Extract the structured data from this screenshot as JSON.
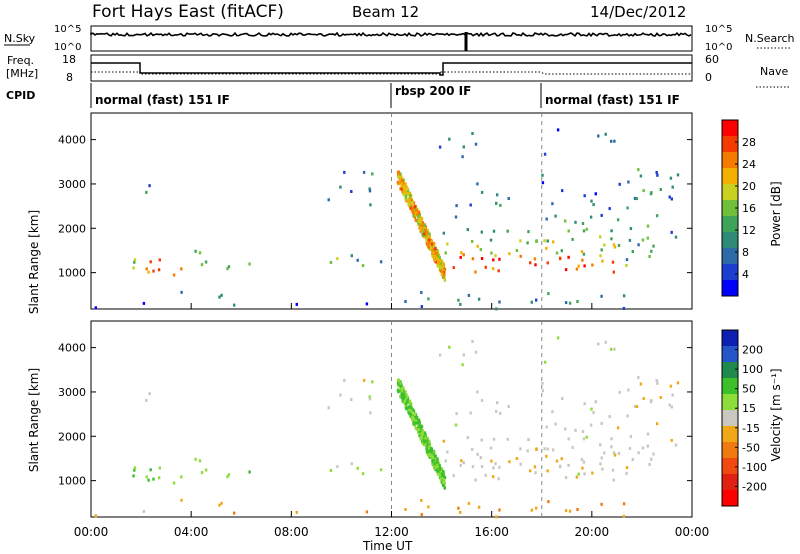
{
  "header": {
    "title": "Fort Hays East (fitACF)",
    "beam": "Beam 12",
    "date": "14/Dec/2012"
  },
  "top_panels": {
    "noise": {
      "left_label": "N.Sky",
      "left_ticks": [
        "10^5",
        "10^0"
      ],
      "right_ticks": [
        "10^5",
        "10^0"
      ],
      "right_label": "N.Search"
    },
    "freq": {
      "left_label_lines": [
        "Freq.",
        "[MHz]"
      ],
      "left_ticks": [
        "18",
        "8"
      ],
      "right_ticks": [
        "60",
        "0"
      ],
      "right_label": "Nave"
    },
    "cpid": {
      "label": "CPID",
      "segments": [
        {
          "start_h": 0,
          "end_h": 12,
          "text": "normal (fast) 151 IF"
        },
        {
          "start_h": 12,
          "end_h": 18,
          "text": "rbsp 200 IF"
        },
        {
          "start_h": 18,
          "end_h": 24,
          "text": "normal (fast) 151 IF"
        }
      ]
    }
  },
  "colors": {
    "power": [
      "#0000ff",
      "#1d3dd0",
      "#2c6aa8",
      "#2f8a78",
      "#3fa35a",
      "#6fbf3a",
      "#c8d020",
      "#f4b000",
      "#f47a00",
      "#f43c00",
      "#ff0000"
    ],
    "velocity": [
      "#0d1fb0",
      "#2456c8",
      "#1f8a4c",
      "#3bbf2a",
      "#8ddc3a",
      "#c8c8c0",
      "#f0a818",
      "#f07a10",
      "#f04a10",
      "#e02010",
      "#ff0000"
    ]
  },
  "chart_data": {
    "type": "heatmap",
    "x_axis": {
      "range_hours": [
        0,
        24
      ],
      "tick_labels": [
        "00:00",
        "04:00",
        "08:00",
        "12:00",
        "16:00",
        "20:00",
        "00:00"
      ],
      "label": "Time UT"
    },
    "y_axis": {
      "label": "Slant Range [km]",
      "range_km": [
        180,
        4600
      ],
      "tick_values": [
        1000,
        2000,
        3000,
        4000
      ]
    },
    "panels": [
      {
        "name": "power",
        "colorbar_label": "Power [dB]",
        "colorbar_ticks": [
          "28",
          "24",
          "20",
          "16",
          "12",
          "8",
          "4"
        ],
        "range": [
          0,
          30
        ]
      },
      {
        "name": "velocity",
        "colorbar_label": "Velocity [m s⁻¹]",
        "colorbar_ticks": [
          "200",
          "100",
          "50",
          "15",
          "-15",
          "-50",
          "-100",
          "-200"
        ],
        "range": [
          -250,
          250
        ]
      }
    ],
    "scatter_regions": [
      {
        "t0": 1.0,
        "t1": 2.0,
        "r0": 1000,
        "r1": 1350,
        "density": 0.8,
        "power": 16,
        "velocity": 60
      },
      {
        "t0": 2.0,
        "t1": 3.6,
        "r0": 850,
        "r1": 1350,
        "density": 0.9,
        "power": 22,
        "velocity": 70
      },
      {
        "t0": 3.5,
        "t1": 5.0,
        "r0": 1150,
        "r1": 1500,
        "density": 0.75,
        "power": 14,
        "velocity": 60
      },
      {
        "t0": 5.0,
        "t1": 6.6,
        "r0": 1050,
        "r1": 1350,
        "density": 0.6,
        "power": 14,
        "velocity": 55
      },
      {
        "t0": 1.8,
        "t1": 2.6,
        "r0": 2400,
        "r1": 3200,
        "density": 0.35,
        "power": 10,
        "velocity": 0
      },
      {
        "t0": 9.0,
        "t1": 11.8,
        "r0": 1000,
        "r1": 1400,
        "density": 0.5,
        "power": 12,
        "velocity": 20
      },
      {
        "t0": 9.2,
        "t1": 12.0,
        "r0": 2400,
        "r1": 3400,
        "density": 0.3,
        "power": 8,
        "velocity": 0
      },
      {
        "t0": 12.0,
        "t1": 24.0,
        "r0": 180,
        "r1": 600,
        "density": 0.35,
        "power": 8,
        "velocity": -60
      },
      {
        "t0": 14.0,
        "t1": 21.0,
        "r0": 1000,
        "r1": 1350,
        "density": 0.95,
        "power": 26,
        "velocity": -5
      },
      {
        "t0": 14.0,
        "t1": 21.0,
        "r0": 1350,
        "r1": 1700,
        "density": 0.85,
        "power": 18,
        "velocity": -5
      },
      {
        "t0": 14.0,
        "t1": 21.0,
        "r0": 1700,
        "r1": 2200,
        "density": 0.6,
        "power": 12,
        "velocity": 0
      },
      {
        "t0": 14.0,
        "t1": 21.5,
        "r0": 2200,
        "r1": 2600,
        "density": 0.35,
        "power": 8,
        "velocity": 0
      },
      {
        "t0": 14.0,
        "t1": 22.0,
        "r0": 2600,
        "r1": 3200,
        "density": 0.25,
        "power": 6,
        "velocity": 0
      },
      {
        "t0": 13.2,
        "t1": 21.0,
        "r0": 3200,
        "r1": 4400,
        "density": 0.12,
        "power": 6,
        "velocity": 20
      },
      {
        "t0": 21.0,
        "t1": 22.5,
        "r0": 1100,
        "r1": 3400,
        "density": 0.55,
        "power": 12,
        "velocity": -5
      },
      {
        "t0": 22.5,
        "t1": 23.7,
        "r0": 1700,
        "r1": 3400,
        "density": 0.5,
        "power": 8,
        "velocity": -5
      },
      {
        "t0": 0.0,
        "t1": 12.0,
        "r0": 180,
        "r1": 600,
        "density": 0.15,
        "power": 6,
        "velocity": -40
      }
    ],
    "descending_streak": {
      "t0": 12.2,
      "t1": 14.1,
      "r_start": 3200,
      "r_end": 950,
      "power": 20,
      "velocity": 70
    }
  }
}
